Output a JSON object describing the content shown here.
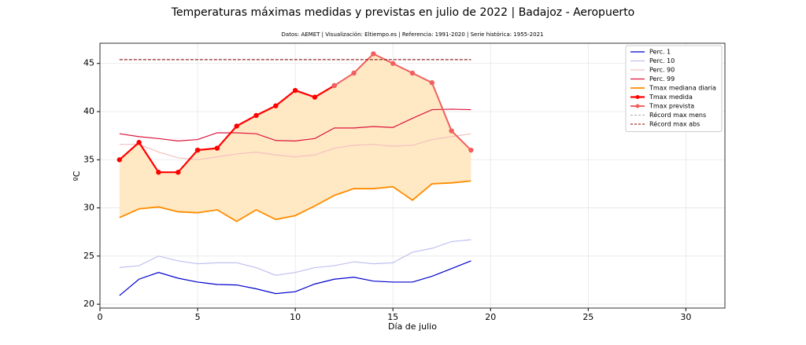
{
  "chart_data": {
    "type": "line",
    "title": "Temperaturas máximas medidas y previstas en julio de 2022 | Badajoz - Aeropuerto",
    "subtitle": "Datos: AEMET | Visualización: Eltiempo.es | Referencia: 1991-2020 | Serie histórica: 1955-2021",
    "xlabel": "Día de julio",
    "ylabel": "ºC",
    "x": [
      1,
      2,
      3,
      4,
      5,
      6,
      7,
      8,
      9,
      10,
      11,
      12,
      13,
      14,
      15,
      16,
      17,
      18,
      19
    ],
    "xlim": [
      0,
      32
    ],
    "ylim": [
      19.6,
      47.1
    ],
    "xticks": [
      0,
      5,
      10,
      15,
      20,
      25,
      30
    ],
    "yticks": [
      20,
      25,
      30,
      35,
      40,
      45
    ],
    "grid": true,
    "legend": "upper right",
    "fill_color": "#ffe9c4",
    "series": [
      {
        "name": "Perc. 1",
        "color": "#0000cd",
        "linewidth": 1.2,
        "values": [
          20.9,
          22.6,
          23.3,
          22.7,
          22.3,
          22.05,
          22.0,
          21.6,
          21.1,
          21.3,
          22.1,
          22.6,
          22.8,
          22.4,
          22.3,
          22.3,
          22.9,
          23.7,
          24.5
        ]
      },
      {
        "name": "Perc. 10",
        "color": "#c0c0f0",
        "linewidth": 1.2,
        "values": [
          23.8,
          24.0,
          25.0,
          24.5,
          24.2,
          24.3,
          24.3,
          23.8,
          23.0,
          23.3,
          23.8,
          24.0,
          24.4,
          24.2,
          24.3,
          25.4,
          25.8,
          26.5,
          26.7
        ]
      },
      {
        "name": "Perc. 90",
        "color": "#f4c0c0",
        "linewidth": 1.2,
        "values": [
          36.6,
          36.6,
          35.8,
          35.2,
          35.0,
          35.3,
          35.6,
          35.8,
          35.5,
          35.3,
          35.5,
          36.2,
          36.5,
          36.6,
          36.4,
          36.5,
          37.1,
          37.4,
          37.7
        ]
      },
      {
        "name": "Perc. 99",
        "color": "#dc143c",
        "linewidth": 1.2,
        "values": [
          37.7,
          37.4,
          37.2,
          36.95,
          37.1,
          37.8,
          37.8,
          37.7,
          37.0,
          36.95,
          37.2,
          38.3,
          38.3,
          38.45,
          38.35,
          39.3,
          40.2,
          40.25,
          40.2
        ]
      },
      {
        "name": "Tmax mediana diaria",
        "color": "#ff8c00",
        "linewidth": 1.8,
        "values": [
          29.0,
          29.9,
          30.1,
          29.6,
          29.5,
          29.8,
          28.6,
          29.8,
          28.8,
          29.2,
          30.2,
          31.3,
          32.0,
          32.0,
          32.2,
          30.8,
          32.5,
          32.6,
          32.8
        ]
      },
      {
        "name": "Tmax medida",
        "color": "#ff0000",
        "linewidth": 2.2,
        "marker": "o",
        "values": [
          35.0,
          36.8,
          33.7,
          33.7,
          36.0,
          36.2,
          38.5,
          39.6,
          40.6,
          42.2,
          41.5,
          42.7,
          null,
          null,
          null,
          null,
          null,
          null,
          null
        ]
      },
      {
        "name": "Tmax prevista",
        "color": "#f06060",
        "linewidth": 2.0,
        "marker": "o",
        "values": [
          null,
          null,
          null,
          null,
          null,
          null,
          null,
          null,
          null,
          null,
          null,
          42.7,
          44.0,
          46.0,
          45.0,
          44.0,
          43.0,
          38.0,
          36.0
        ]
      },
      {
        "name": "Récord max mens",
        "color": "#aaaaaa",
        "linewidth": 1,
        "linestyle": "dashed",
        "values": [
          45.4,
          45.4,
          45.4,
          45.4,
          45.4,
          45.4,
          45.4,
          45.4,
          45.4,
          45.4,
          45.4,
          45.4,
          45.4,
          45.4,
          45.4,
          45.4,
          45.4,
          45.4,
          45.4
        ]
      },
      {
        "name": "Récord max abs",
        "color": "#8b0000",
        "linewidth": 1,
        "linestyle": "dashed",
        "values": [
          45.4,
          45.4,
          45.4,
          45.4,
          45.4,
          45.4,
          45.4,
          45.4,
          45.4,
          45.4,
          45.4,
          45.4,
          45.4,
          45.4,
          45.4,
          45.4,
          45.4,
          45.4,
          45.4
        ]
      }
    ]
  }
}
